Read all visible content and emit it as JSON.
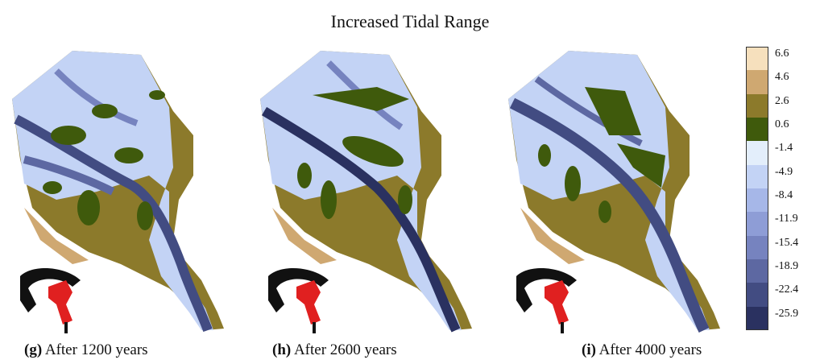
{
  "title": "Increased Tidal Range",
  "panels": [
    {
      "letter": "(g)",
      "caption": "After 1200 years"
    },
    {
      "letter": "(h)",
      "caption": "After 2600 years"
    },
    {
      "letter": "(i)",
      "caption": "After 4000 years"
    }
  ],
  "colorbar": {
    "ticks": [
      "6.6",
      "4.6",
      "2.6",
      "0.6",
      "-1.4",
      "-4.9",
      "-8.4",
      "-11.9",
      "-15.4",
      "-18.9",
      "-22.4",
      "-25.9"
    ],
    "colors": [
      "#f6e0bd",
      "#cfa871",
      "#8c7a2b",
      "#3f5a0c",
      "#e3eefb",
      "#c3d3f5",
      "#a6b7e8",
      "#8e9dd6",
      "#7683bf",
      "#5d68a2",
      "#424c82",
      "#2a3160"
    ]
  }
}
